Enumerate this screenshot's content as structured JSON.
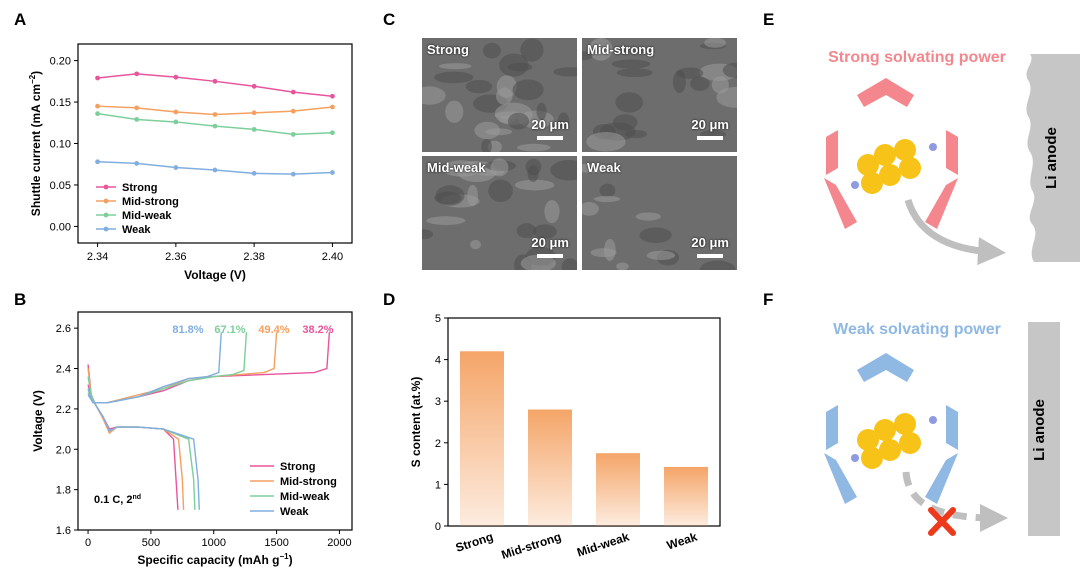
{
  "panels": {
    "A": "A",
    "B": "B",
    "C": "C",
    "D": "D",
    "E": "E",
    "F": "F"
  },
  "chart_data": [
    {
      "panel": "A",
      "type": "line",
      "xlabel": "Voltage (V)",
      "ylabel": "Shuttle current (mA cm",
      "ylabel_sup": "−2",
      "ylabel_end": ")",
      "xlim": [
        2.335,
        2.405
      ],
      "ylim": [
        -0.02,
        0.22
      ],
      "xticks": [
        "2.34",
        "2.36",
        "2.38",
        "2.40"
      ],
      "yticks": [
        "0.00",
        "0.05",
        "0.10",
        "0.15",
        "0.20"
      ],
      "x": [
        2.34,
        2.35,
        2.36,
        2.37,
        2.38,
        2.39,
        2.4
      ],
      "legend_position": "bottom-left",
      "series": [
        {
          "name": "Strong",
          "color": "#e8559c",
          "values": [
            0.179,
            0.184,
            0.18,
            0.175,
            0.169,
            0.162,
            0.157
          ]
        },
        {
          "name": "Mid-strong",
          "color": "#f4a060",
          "values": [
            0.145,
            0.143,
            0.138,
            0.135,
            0.137,
            0.139,
            0.144
          ]
        },
        {
          "name": "Mid-weak",
          "color": "#7ccf9a",
          "values": [
            0.136,
            0.129,
            0.126,
            0.121,
            0.117,
            0.111,
            0.113
          ]
        },
        {
          "name": "Weak",
          "color": "#80aee0",
          "values": [
            0.078,
            0.076,
            0.071,
            0.068,
            0.064,
            0.063,
            0.065
          ]
        }
      ]
    },
    {
      "panel": "B",
      "type": "line",
      "xlabel": "Specific capacity (mAh g",
      "xlabel_sup": "−1",
      "xlabel_end": ")",
      "ylabel": "Voltage (V)",
      "xlim": [
        -80,
        2100
      ],
      "ylim": [
        1.6,
        2.68
      ],
      "xticks": [
        "0",
        "500",
        "1000",
        "1500",
        "2000"
      ],
      "yticks": [
        "1.6",
        "1.8",
        "2.0",
        "2.2",
        "2.4",
        "2.6"
      ],
      "annotation": "0.1 C, 2",
      "annotation_sup": "nd",
      "legend_position": "bottom-right",
      "series": [
        {
          "name": "Strong",
          "color": "#e8559c",
          "label": "38.2%",
          "discharge": {
            "x": [
              0,
              25,
              60,
              120,
              170,
              230,
              400,
              600,
              680,
              700,
              715
            ],
            "y": [
              2.42,
              2.27,
              2.22,
              2.16,
              2.1,
              2.11,
              2.11,
              2.1,
              2.05,
              1.85,
              1.7
            ]
          },
          "charge": {
            "x": [
              0,
              40,
              150,
              400,
              600,
              800,
              1000,
              1400,
              1800,
              1900,
              1920
            ],
            "y": [
              2.32,
              2.23,
              2.23,
              2.26,
              2.29,
              2.34,
              2.36,
              2.37,
              2.38,
              2.4,
              2.58
            ]
          }
        },
        {
          "name": "Mid-strong",
          "color": "#f4a060",
          "label": "49.4%",
          "discharge": {
            "x": [
              0,
              25,
              60,
              120,
              170,
              230,
              400,
              600,
              720,
              750,
              760
            ],
            "y": [
              2.4,
              2.27,
              2.22,
              2.15,
              2.08,
              2.11,
              2.11,
              2.1,
              2.05,
              1.85,
              1.7
            ]
          },
          "charge": {
            "x": [
              0,
              40,
              150,
              400,
              600,
              800,
              1000,
              1200,
              1400,
              1480,
              1500
            ],
            "y": [
              2.3,
              2.23,
              2.23,
              2.27,
              2.3,
              2.35,
              2.36,
              2.37,
              2.38,
              2.4,
              2.58
            ]
          }
        },
        {
          "name": "Mid-weak",
          "color": "#7ccf9a",
          "label": "67.1%",
          "discharge": {
            "x": [
              0,
              25,
              60,
              120,
              170,
              230,
              400,
              600,
              800,
              840,
              850
            ],
            "y": [
              2.36,
              2.27,
              2.22,
              2.16,
              2.09,
              2.11,
              2.11,
              2.1,
              2.05,
              1.85,
              1.7
            ]
          },
          "charge": {
            "x": [
              0,
              40,
              150,
              400,
              600,
              800,
              1000,
              1150,
              1240,
              1260
            ],
            "y": [
              2.28,
              2.23,
              2.23,
              2.26,
              2.3,
              2.34,
              2.36,
              2.37,
              2.39,
              2.58
            ]
          }
        },
        {
          "name": "Weak",
          "color": "#80aee0",
          "label": "81.8%",
          "discharge": {
            "x": [
              0,
              25,
              60,
              120,
              170,
              230,
              400,
              600,
              840,
              875,
              885
            ],
            "y": [
              2.3,
              2.25,
              2.22,
              2.16,
              2.09,
              2.11,
              2.11,
              2.1,
              2.05,
              1.85,
              1.7
            ]
          },
          "charge": {
            "x": [
              0,
              40,
              150,
              400,
              600,
              800,
              950,
              1040,
              1060
            ],
            "y": [
              2.27,
              2.23,
              2.23,
              2.26,
              2.31,
              2.35,
              2.36,
              2.38,
              2.58
            ]
          }
        }
      ]
    },
    {
      "panel": "D",
      "type": "bar",
      "ylabel": "S content (at.%)",
      "xlabel": "",
      "ylim": [
        0,
        5
      ],
      "yticks": [
        "0",
        "1",
        "2",
        "3",
        "4",
        "5"
      ],
      "categories": [
        "Strong",
        "Mid-strong",
        "Mid-weak",
        "Weak"
      ],
      "values": [
        4.2,
        2.8,
        1.75,
        1.42
      ],
      "bar_color": "#f4a060"
    }
  ],
  "sem": {
    "tiles": [
      {
        "label": "Strong",
        "scale": "20 μm"
      },
      {
        "label": "Mid-strong",
        "scale": "20 μm"
      },
      {
        "label": "Mid-weak",
        "scale": "20 μm"
      },
      {
        "label": "Weak",
        "scale": "20 μm"
      }
    ]
  },
  "schematic_e": {
    "title": "Strong solvating power",
    "title_color": "#f4878d",
    "anode": "Li anode",
    "hex_color": "#f4878d"
  },
  "schematic_f": {
    "title": "Weak solvating power",
    "title_color": "#8fb8e3",
    "anode": "Li anode",
    "hex_color": "#8fb8e3"
  }
}
